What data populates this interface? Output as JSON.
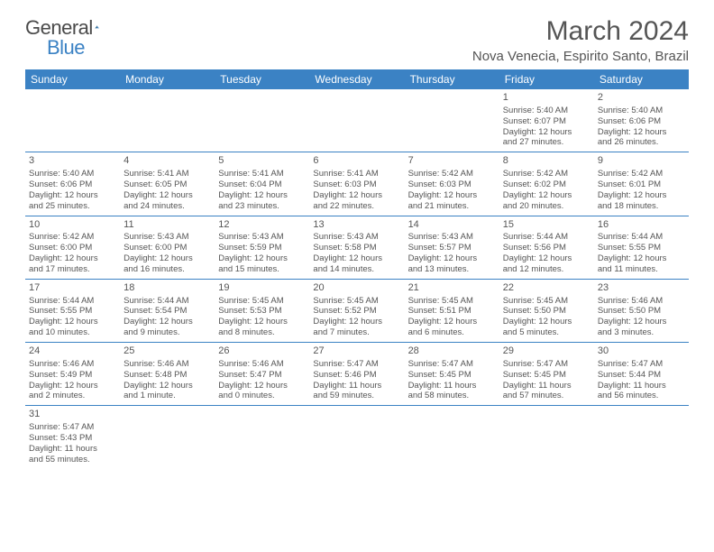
{
  "logo": {
    "text1": "General",
    "text2": "Blue"
  },
  "title": "March 2024",
  "location": "Nova Venecia, Espirito Santo, Brazil",
  "weekdays": [
    "Sunday",
    "Monday",
    "Tuesday",
    "Wednesday",
    "Thursday",
    "Friday",
    "Saturday"
  ],
  "colors": {
    "header_bg": "#3b82c4",
    "header_text": "#ffffff",
    "text": "#555555",
    "border": "#3b82c4"
  },
  "weeks": [
    [
      null,
      null,
      null,
      null,
      null,
      {
        "n": "1",
        "sr": "Sunrise: 5:40 AM",
        "ss": "Sunset: 6:07 PM",
        "d1": "Daylight: 12 hours",
        "d2": "and 27 minutes."
      },
      {
        "n": "2",
        "sr": "Sunrise: 5:40 AM",
        "ss": "Sunset: 6:06 PM",
        "d1": "Daylight: 12 hours",
        "d2": "and 26 minutes."
      }
    ],
    [
      {
        "n": "3",
        "sr": "Sunrise: 5:40 AM",
        "ss": "Sunset: 6:06 PM",
        "d1": "Daylight: 12 hours",
        "d2": "and 25 minutes."
      },
      {
        "n": "4",
        "sr": "Sunrise: 5:41 AM",
        "ss": "Sunset: 6:05 PM",
        "d1": "Daylight: 12 hours",
        "d2": "and 24 minutes."
      },
      {
        "n": "5",
        "sr": "Sunrise: 5:41 AM",
        "ss": "Sunset: 6:04 PM",
        "d1": "Daylight: 12 hours",
        "d2": "and 23 minutes."
      },
      {
        "n": "6",
        "sr": "Sunrise: 5:41 AM",
        "ss": "Sunset: 6:03 PM",
        "d1": "Daylight: 12 hours",
        "d2": "and 22 minutes."
      },
      {
        "n": "7",
        "sr": "Sunrise: 5:42 AM",
        "ss": "Sunset: 6:03 PM",
        "d1": "Daylight: 12 hours",
        "d2": "and 21 minutes."
      },
      {
        "n": "8",
        "sr": "Sunrise: 5:42 AM",
        "ss": "Sunset: 6:02 PM",
        "d1": "Daylight: 12 hours",
        "d2": "and 20 minutes."
      },
      {
        "n": "9",
        "sr": "Sunrise: 5:42 AM",
        "ss": "Sunset: 6:01 PM",
        "d1": "Daylight: 12 hours",
        "d2": "and 18 minutes."
      }
    ],
    [
      {
        "n": "10",
        "sr": "Sunrise: 5:42 AM",
        "ss": "Sunset: 6:00 PM",
        "d1": "Daylight: 12 hours",
        "d2": "and 17 minutes."
      },
      {
        "n": "11",
        "sr": "Sunrise: 5:43 AM",
        "ss": "Sunset: 6:00 PM",
        "d1": "Daylight: 12 hours",
        "d2": "and 16 minutes."
      },
      {
        "n": "12",
        "sr": "Sunrise: 5:43 AM",
        "ss": "Sunset: 5:59 PM",
        "d1": "Daylight: 12 hours",
        "d2": "and 15 minutes."
      },
      {
        "n": "13",
        "sr": "Sunrise: 5:43 AM",
        "ss": "Sunset: 5:58 PM",
        "d1": "Daylight: 12 hours",
        "d2": "and 14 minutes."
      },
      {
        "n": "14",
        "sr": "Sunrise: 5:43 AM",
        "ss": "Sunset: 5:57 PM",
        "d1": "Daylight: 12 hours",
        "d2": "and 13 minutes."
      },
      {
        "n": "15",
        "sr": "Sunrise: 5:44 AM",
        "ss": "Sunset: 5:56 PM",
        "d1": "Daylight: 12 hours",
        "d2": "and 12 minutes."
      },
      {
        "n": "16",
        "sr": "Sunrise: 5:44 AM",
        "ss": "Sunset: 5:55 PM",
        "d1": "Daylight: 12 hours",
        "d2": "and 11 minutes."
      }
    ],
    [
      {
        "n": "17",
        "sr": "Sunrise: 5:44 AM",
        "ss": "Sunset: 5:55 PM",
        "d1": "Daylight: 12 hours",
        "d2": "and 10 minutes."
      },
      {
        "n": "18",
        "sr": "Sunrise: 5:44 AM",
        "ss": "Sunset: 5:54 PM",
        "d1": "Daylight: 12 hours",
        "d2": "and 9 minutes."
      },
      {
        "n": "19",
        "sr": "Sunrise: 5:45 AM",
        "ss": "Sunset: 5:53 PM",
        "d1": "Daylight: 12 hours",
        "d2": "and 8 minutes."
      },
      {
        "n": "20",
        "sr": "Sunrise: 5:45 AM",
        "ss": "Sunset: 5:52 PM",
        "d1": "Daylight: 12 hours",
        "d2": "and 7 minutes."
      },
      {
        "n": "21",
        "sr": "Sunrise: 5:45 AM",
        "ss": "Sunset: 5:51 PM",
        "d1": "Daylight: 12 hours",
        "d2": "and 6 minutes."
      },
      {
        "n": "22",
        "sr": "Sunrise: 5:45 AM",
        "ss": "Sunset: 5:50 PM",
        "d1": "Daylight: 12 hours",
        "d2": "and 5 minutes."
      },
      {
        "n": "23",
        "sr": "Sunrise: 5:46 AM",
        "ss": "Sunset: 5:50 PM",
        "d1": "Daylight: 12 hours",
        "d2": "and 3 minutes."
      }
    ],
    [
      {
        "n": "24",
        "sr": "Sunrise: 5:46 AM",
        "ss": "Sunset: 5:49 PM",
        "d1": "Daylight: 12 hours",
        "d2": "and 2 minutes."
      },
      {
        "n": "25",
        "sr": "Sunrise: 5:46 AM",
        "ss": "Sunset: 5:48 PM",
        "d1": "Daylight: 12 hours",
        "d2": "and 1 minute."
      },
      {
        "n": "26",
        "sr": "Sunrise: 5:46 AM",
        "ss": "Sunset: 5:47 PM",
        "d1": "Daylight: 12 hours",
        "d2": "and 0 minutes."
      },
      {
        "n": "27",
        "sr": "Sunrise: 5:47 AM",
        "ss": "Sunset: 5:46 PM",
        "d1": "Daylight: 11 hours",
        "d2": "and 59 minutes."
      },
      {
        "n": "28",
        "sr": "Sunrise: 5:47 AM",
        "ss": "Sunset: 5:45 PM",
        "d1": "Daylight: 11 hours",
        "d2": "and 58 minutes."
      },
      {
        "n": "29",
        "sr": "Sunrise: 5:47 AM",
        "ss": "Sunset: 5:45 PM",
        "d1": "Daylight: 11 hours",
        "d2": "and 57 minutes."
      },
      {
        "n": "30",
        "sr": "Sunrise: 5:47 AM",
        "ss": "Sunset: 5:44 PM",
        "d1": "Daylight: 11 hours",
        "d2": "and 56 minutes."
      }
    ],
    [
      {
        "n": "31",
        "sr": "Sunrise: 5:47 AM",
        "ss": "Sunset: 5:43 PM",
        "d1": "Daylight: 11 hours",
        "d2": "and 55 minutes."
      },
      null,
      null,
      null,
      null,
      null,
      null
    ]
  ]
}
